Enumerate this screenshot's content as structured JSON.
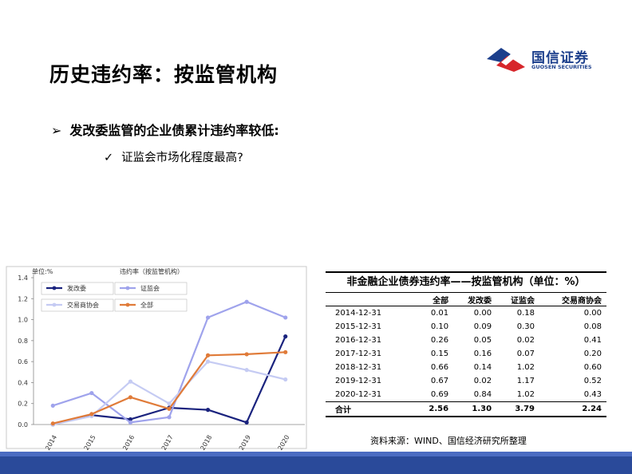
{
  "title": "历史违约率：按监管机构",
  "logo": {
    "name": "国信证券",
    "en": "GUOSEN SECURITIES"
  },
  "bullets": {
    "main": "发改委监管的企业债累计违约率较低:",
    "sub": "证监会市场化程度最高?"
  },
  "chart_data": {
    "type": "line",
    "title": "违约率（按监管机构）",
    "ylabel": "单位:%",
    "categories": [
      "2014",
      "2015",
      "2016",
      "2017",
      "2018",
      "2019",
      "2020"
    ],
    "ylim": [
      0,
      1.4
    ],
    "yticks": [
      "0.0",
      "0.2",
      "0.4",
      "0.6",
      "0.8",
      "1.0",
      "1.2",
      "1.4"
    ],
    "legend": "top-left",
    "series": [
      {
        "name": "发改委",
        "color": "#1a237e",
        "values": [
          0.0,
          0.09,
          0.05,
          0.16,
          0.14,
          0.02,
          0.84
        ]
      },
      {
        "name": "证监会",
        "color": "#9fa3ec",
        "values": [
          0.18,
          0.3,
          0.02,
          0.07,
          1.02,
          1.17,
          1.02
        ]
      },
      {
        "name": "交易商协会",
        "color": "#c5cbf3",
        "values": [
          0.0,
          0.08,
          0.41,
          0.2,
          0.6,
          0.52,
          0.43
        ]
      },
      {
        "name": "全部",
        "color": "#e07b39",
        "values": [
          0.01,
          0.1,
          0.26,
          0.15,
          0.66,
          0.67,
          0.69
        ]
      }
    ]
  },
  "table": {
    "title": "非金融企业债券违约率——按监管机构（单位：%）",
    "headers": [
      "",
      "全部",
      "发改委",
      "证监会",
      "交易商协会"
    ],
    "rows": [
      [
        "2014-12-31",
        "0.01",
        "0.00",
        "0.18",
        "0.00"
      ],
      [
        "2015-12-31",
        "0.10",
        "0.09",
        "0.30",
        "0.08"
      ],
      [
        "2016-12-31",
        "0.26",
        "0.05",
        "0.02",
        "0.41"
      ],
      [
        "2017-12-31",
        "0.15",
        "0.16",
        "0.07",
        "0.20"
      ],
      [
        "2018-12-31",
        "0.66",
        "0.14",
        "1.02",
        "0.60"
      ],
      [
        "2019-12-31",
        "0.67",
        "0.02",
        "1.17",
        "0.52"
      ],
      [
        "2020-12-31",
        "0.69",
        "0.84",
        "1.02",
        "0.43"
      ]
    ],
    "total": [
      "合计",
      "2.56",
      "1.30",
      "3.79",
      "2.24"
    ]
  },
  "source": "资料来源：WIND、国信经济研究所整理"
}
